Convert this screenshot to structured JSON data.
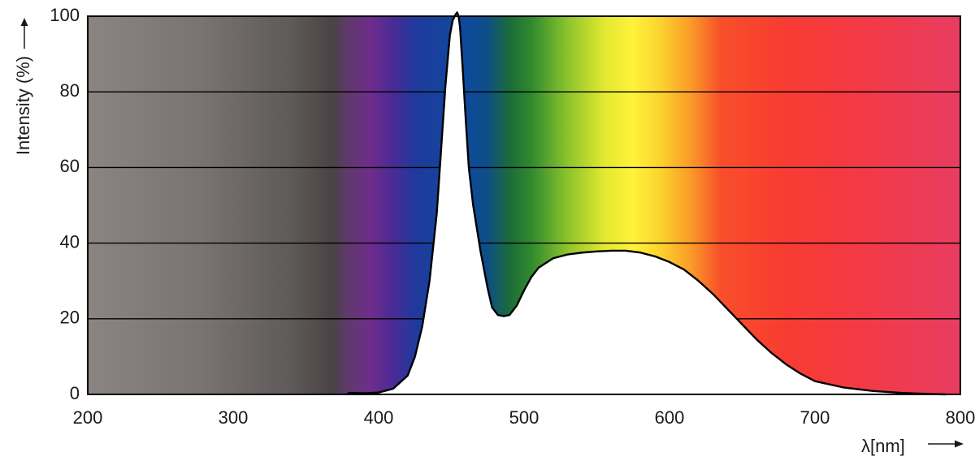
{
  "chart_data": {
    "type": "area",
    "title": "",
    "xlabel": "λ[nm]",
    "ylabel": "Intensity (%)",
    "xlim": [
      200,
      800
    ],
    "ylim": [
      0,
      100
    ],
    "x_ticks": [
      200,
      300,
      400,
      500,
      600,
      700,
      800
    ],
    "y_ticks": [
      0,
      20,
      40,
      60,
      80,
      100
    ],
    "grid": "horizontal",
    "background": "visible spectrum color gradient by wavelength",
    "series": [
      {
        "color": "#000000",
        "fill": "#ffffff",
        "x": [
          378,
          380,
          390,
          400,
          410,
          420,
          425,
          430,
          435,
          440,
          443,
          446,
          449,
          451,
          453,
          454,
          455,
          456,
          458,
          460,
          462,
          465,
          470,
          475,
          478,
          482,
          486,
          490,
          495,
          500,
          505,
          510,
          520,
          530,
          540,
          550,
          560,
          570,
          580,
          590,
          600,
          610,
          620,
          630,
          640,
          650,
          660,
          670,
          680,
          690,
          700,
          720,
          740,
          760,
          780,
          790
        ],
        "y": [
          0,
          0.4,
          0.3,
          0.5,
          1.5,
          5,
          10,
          18,
          30,
          48,
          65,
          82,
          95,
          99,
          100.5,
          101,
          100,
          97,
          85,
          72,
          60,
          50,
          38,
          28,
          23,
          21,
          20.7,
          21,
          23.5,
          27.5,
          31,
          33.5,
          36,
          37,
          37.5,
          37.8,
          38,
          38,
          37.5,
          36.5,
          35,
          33,
          30,
          26.5,
          22.5,
          18.5,
          14.5,
          11,
          8,
          5.5,
          3.5,
          1.8,
          0.9,
          0.4,
          0.1,
          0
        ]
      }
    ],
    "spectrum_stops": [
      {
        "nm": 200,
        "color": "#8a8583"
      },
      {
        "nm": 280,
        "color": "#787371"
      },
      {
        "nm": 340,
        "color": "#5e5a59"
      },
      {
        "nm": 368,
        "color": "#4a4344"
      },
      {
        "nm": 378,
        "color": "#5e3a6a"
      },
      {
        "nm": 395,
        "color": "#6e2c8c"
      },
      {
        "nm": 410,
        "color": "#4a2a96"
      },
      {
        "nm": 425,
        "color": "#1f3a9c"
      },
      {
        "nm": 460,
        "color": "#0d4a9c"
      },
      {
        "nm": 475,
        "color": "#0d4f86"
      },
      {
        "nm": 490,
        "color": "#1c6b3a"
      },
      {
        "nm": 505,
        "color": "#2f8a2e"
      },
      {
        "nm": 530,
        "color": "#8cc42c"
      },
      {
        "nm": 555,
        "color": "#e2e830"
      },
      {
        "nm": 575,
        "color": "#fff23a"
      },
      {
        "nm": 595,
        "color": "#fbd02e"
      },
      {
        "nm": 615,
        "color": "#fa9a28"
      },
      {
        "nm": 635,
        "color": "#f84f2a"
      },
      {
        "nm": 680,
        "color": "#f83b32"
      },
      {
        "nm": 740,
        "color": "#f23a48"
      },
      {
        "nm": 800,
        "color": "#e83d62"
      }
    ]
  }
}
